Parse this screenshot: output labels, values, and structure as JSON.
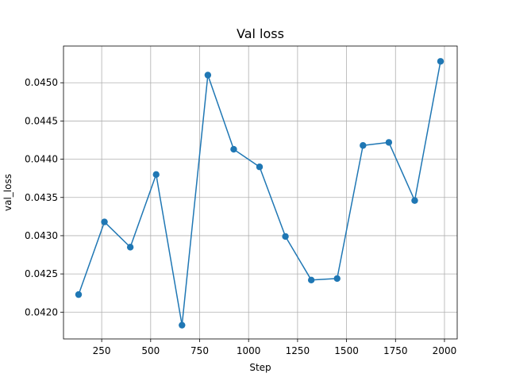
{
  "chart_data": {
    "type": "line",
    "title": "Val loss",
    "xlabel": "Step",
    "ylabel": "val_loss",
    "xlim": [
      55,
      2065
    ],
    "ylim": [
      0.04165,
      0.04548
    ],
    "xticks": [
      250,
      500,
      750,
      1000,
      1250,
      1500,
      1750,
      2000
    ],
    "xtick_labels": [
      "250",
      "500",
      "750",
      "1000",
      "1250",
      "1500",
      "1750",
      "2000"
    ],
    "yticks": [
      0.042,
      0.0425,
      0.043,
      0.0435,
      0.044,
      0.0445,
      0.045
    ],
    "ytick_labels": [
      "0.0420",
      "0.0425",
      "0.0430",
      "0.0435",
      "0.0440",
      "0.0445",
      "0.0450"
    ],
    "grid": true,
    "series": [
      {
        "color": "#1f77b4",
        "marker": "circle",
        "x": [
          132,
          264,
          396,
          528,
          660,
          792,
          924,
          1056,
          1188,
          1320,
          1452,
          1584,
          1716,
          1848,
          1980
        ],
        "y": [
          0.04223,
          0.04318,
          0.04285,
          0.0438,
          0.04183,
          0.0451,
          0.04413,
          0.0439,
          0.04299,
          0.04242,
          0.04244,
          0.04418,
          0.04422,
          0.04346,
          0.04528
        ]
      }
    ]
  }
}
